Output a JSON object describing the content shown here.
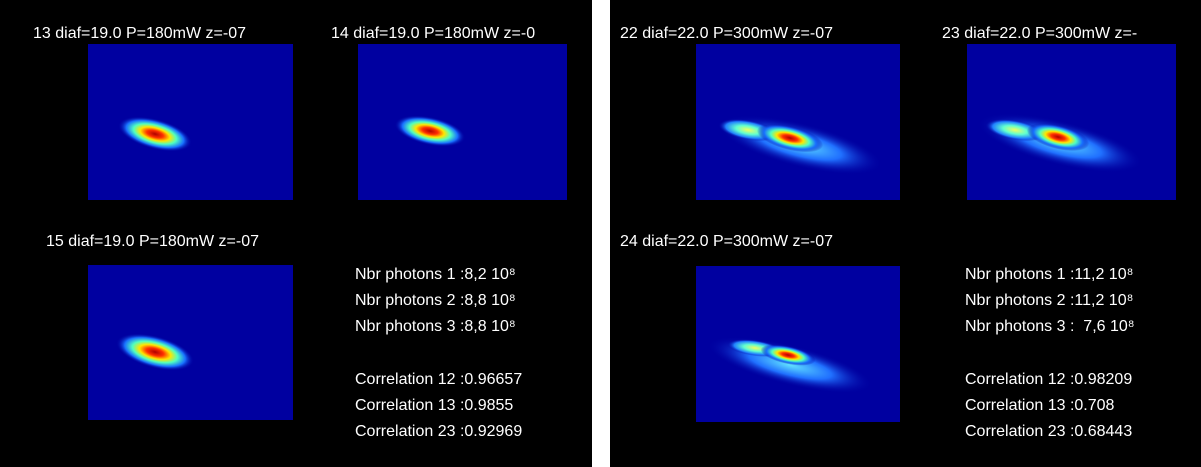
{
  "panels": [
    {
      "images": [
        {
          "title": "13 diaf=19.0 P=180mW z=-07"
        },
        {
          "title": "14 diaf=19.0 P=180mW z=-0"
        },
        {
          "title": "15 diaf=19.0 P=180mW z=-07"
        }
      ],
      "stats": [
        "Nbr photons 1 :8,2 10⁸",
        "Nbr photons 2 :8,8 10⁸",
        "Nbr photons 3 :8,8 10⁸",
        "Correlation 12 :0.96657",
        "Correlation 13 :0.9855",
        "Correlation 23 :0.92969"
      ]
    },
    {
      "images": [
        {
          "title": "22 diaf=22.0 P=300mW z=-07"
        },
        {
          "title": "23 diaf=22.0 P=300mW z=-"
        },
        {
          "title": "24 diaf=22.0 P=300mW z=-07"
        }
      ],
      "stats": [
        "Nbr photons 1 :11,2 10⁸",
        "Nbr photons 2 :11,2 10⁸",
        "Nbr photons 3 :  7,6 10⁸",
        "Correlation 12 :0.98209",
        "Correlation 13 :0.708",
        "Correlation 23 :0.68443"
      ]
    }
  ]
}
